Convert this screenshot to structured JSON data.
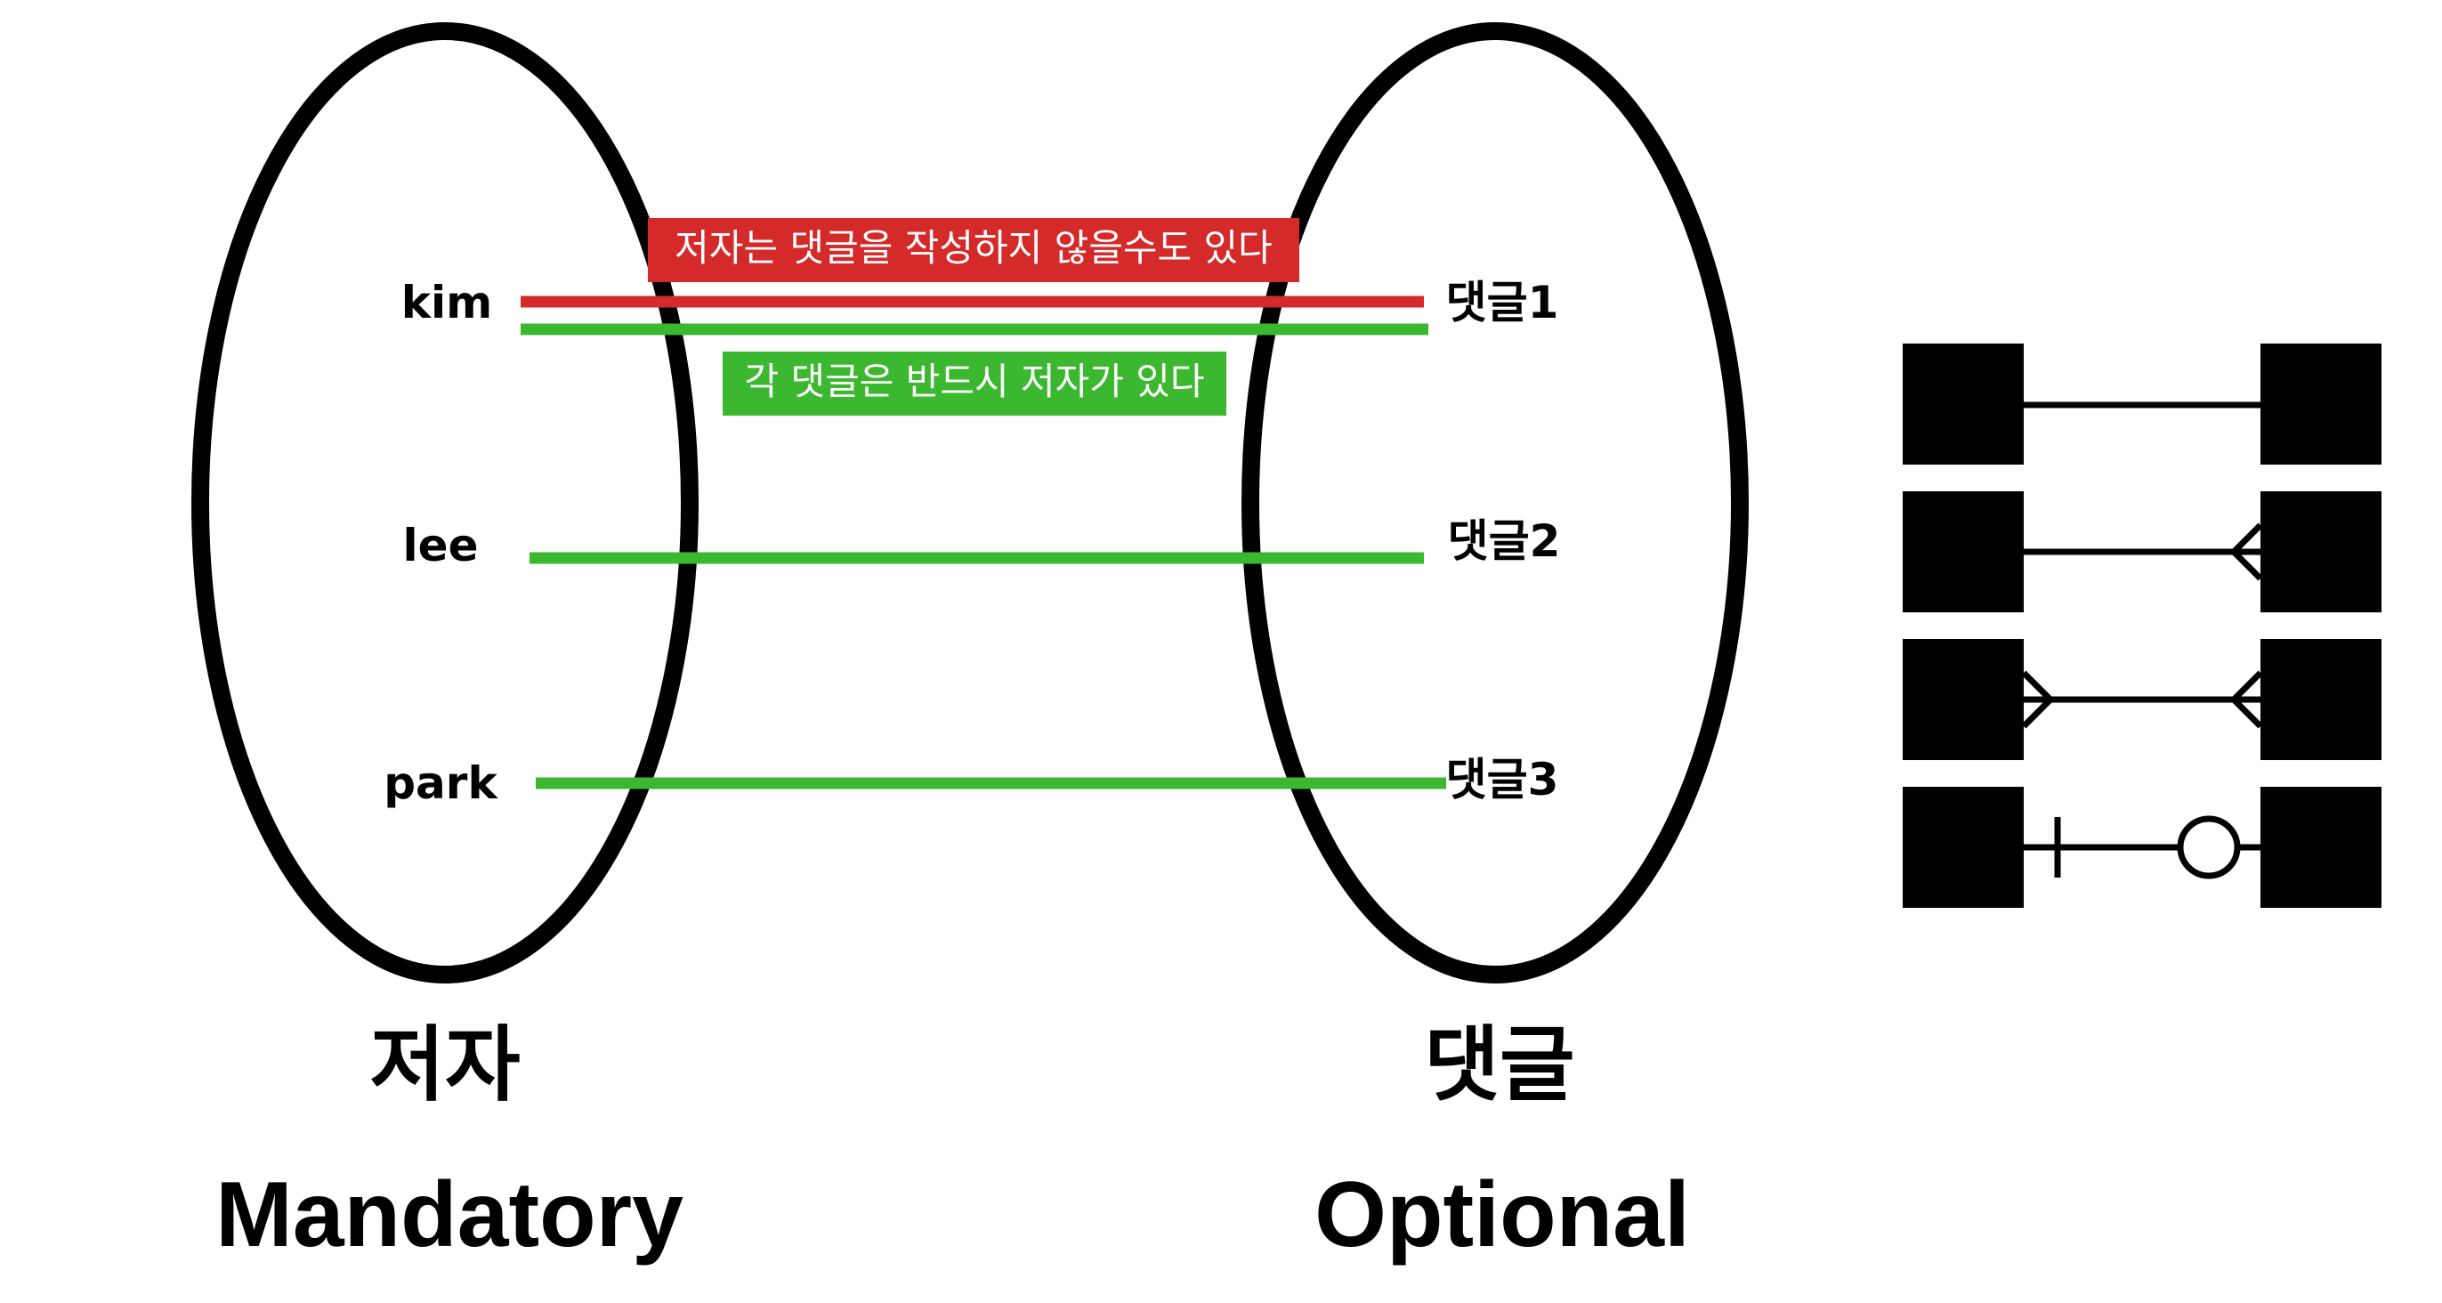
{
  "colors": {
    "optional_relation": "#d42a2a",
    "mandatory_relation": "#3cb830",
    "outline": "#000000",
    "text_on_banner": "#ffffff"
  },
  "left_set": {
    "title": "저자",
    "caption": "Mandatory",
    "members": [
      "kim",
      "lee",
      "park"
    ]
  },
  "right_set": {
    "title": "댓글",
    "caption": "Optional",
    "members": [
      "댓글1",
      "댓글2",
      "댓글3"
    ]
  },
  "annotations": {
    "optional_note": "저자는 댓글을 작성하지 않을수도 있다",
    "mandatory_note": "각 댓글은 반드시 저자가 있다"
  },
  "legend": {
    "rows": [
      {
        "notation": "one-to-one"
      },
      {
        "notation": "one-to-many"
      },
      {
        "notation": "many-to-many"
      },
      {
        "notation": "mandatory-one-to-optional"
      }
    ]
  }
}
